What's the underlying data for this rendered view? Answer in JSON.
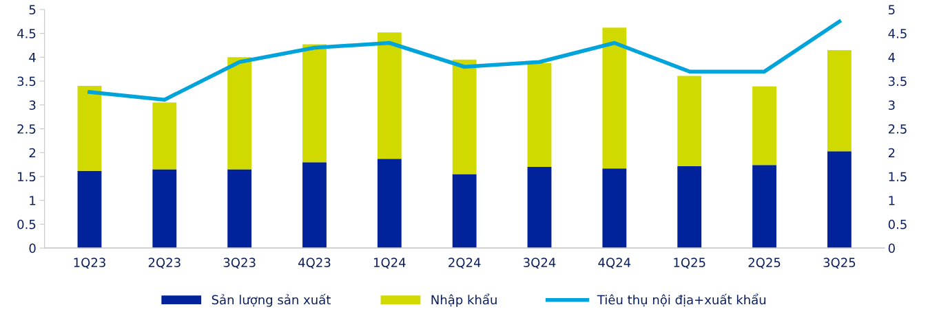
{
  "chart_data": {
    "type": "bar",
    "stacked": true,
    "categories": [
      "1Q23",
      "2Q23",
      "3Q23",
      "4Q23",
      "1Q24",
      "2Q24",
      "3Q24",
      "4Q24",
      "1Q25",
      "2Q25",
      "3Q25"
    ],
    "series": [
      {
        "name": "Sản lượng sản xuất",
        "color": "#00239c",
        "values": [
          1.62,
          1.65,
          1.65,
          1.8,
          1.87,
          1.55,
          1.7,
          1.67,
          1.72,
          1.74,
          2.03
        ]
      },
      {
        "name": "Nhập khẩu",
        "color": "#d0da00",
        "values": [
          1.78,
          1.4,
          2.35,
          2.47,
          2.65,
          2.4,
          2.18,
          2.95,
          1.89,
          1.65,
          2.12
        ]
      },
      {
        "name": "Tiêu thụ nội địa+xuất khẩu",
        "type": "line",
        "color": "#00a3da",
        "values": [
          3.27,
          3.11,
          3.9,
          4.2,
          4.3,
          3.8,
          3.9,
          4.3,
          3.7,
          3.7,
          4.75
        ]
      }
    ],
    "ylim": [
      0,
      5
    ],
    "yticks": [
      0,
      0.5,
      1,
      1.5,
      2,
      2.5,
      3,
      3.5,
      4,
      4.5,
      5
    ],
    "y2lim": [
      0,
      5
    ],
    "y2ticks": [
      0,
      0.5,
      1,
      1.5,
      2,
      2.5,
      3,
      3.5,
      4,
      4.5,
      5
    ],
    "grid": false,
    "legend": "bottom",
    "marker": "none"
  }
}
